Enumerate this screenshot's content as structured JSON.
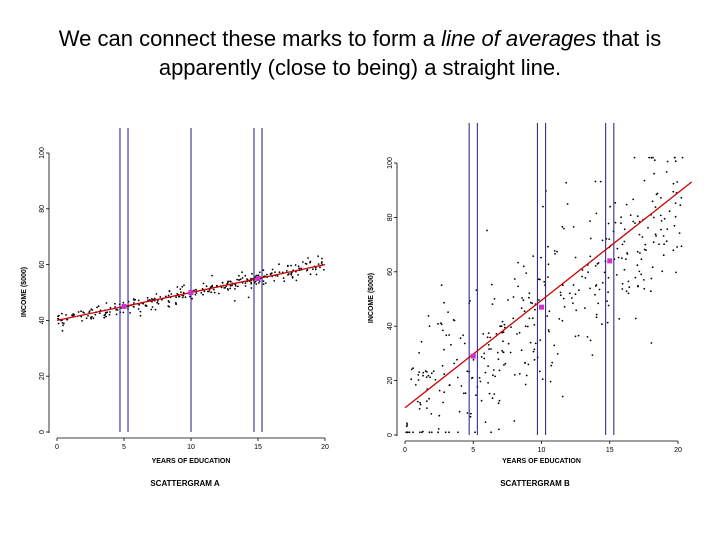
{
  "slide": {
    "title_part1": "We can connect these marks to form a ",
    "title_italic": "line of averages",
    "title_part2": " that is apparently (close to being) a straight line."
  },
  "colors": {
    "points": "#000000",
    "regression_line": "#cc0000",
    "guide_lines": "#1a1a8c",
    "average_marks": "#cc33cc"
  },
  "chart_data": [
    {
      "type": "scatter",
      "caption": "SCATTERGRAM A",
      "xlabel": "YEARS OF EDUCATION",
      "ylabel": "INCOME ($000)",
      "xlim": [
        0,
        20
      ],
      "ylim": [
        0,
        100
      ],
      "xticks": [
        0,
        5,
        10,
        15,
        20
      ],
      "yticks": [
        0,
        20,
        40,
        60,
        80,
        100
      ],
      "line_of_averages": {
        "x": [
          0,
          20
        ],
        "y": [
          40,
          60
        ]
      },
      "vertical_guides_x": [
        4.7,
        5.3,
        10,
        14.7,
        15.3
      ],
      "average_points": {
        "x": [
          5,
          10,
          15
        ],
        "y": [
          45,
          50,
          55
        ]
      },
      "scatter_model": {
        "x_range": [
          0,
          20
        ],
        "intercept": 40,
        "slope": 1,
        "spread": 1.5,
        "count": 300
      }
    },
    {
      "type": "scatter",
      "caption": "SCATTERGRAM B",
      "xlabel": "YEARS OF EDUCATION",
      "ylabel": "INCOME ($000)",
      "xlim": [
        0,
        20
      ],
      "ylim": [
        0,
        100
      ],
      "xticks": [
        0,
        5,
        10,
        15,
        20
      ],
      "yticks": [
        0,
        20,
        40,
        60,
        80,
        100
      ],
      "line_of_averages": {
        "x": [
          0,
          21
        ],
        "y": [
          10,
          93
        ]
      },
      "vertical_guides_x": [
        4.7,
        5.3,
        9.7,
        10.3,
        14.7,
        15.3
      ],
      "average_points": {
        "x": [
          5,
          10,
          15
        ],
        "y": [
          29,
          47,
          64
        ]
      },
      "scatter_model": {
        "x_range": [
          0,
          20.5
        ],
        "intercept": 10,
        "slope": 3.6,
        "spread": 16,
        "count": 380
      }
    }
  ]
}
